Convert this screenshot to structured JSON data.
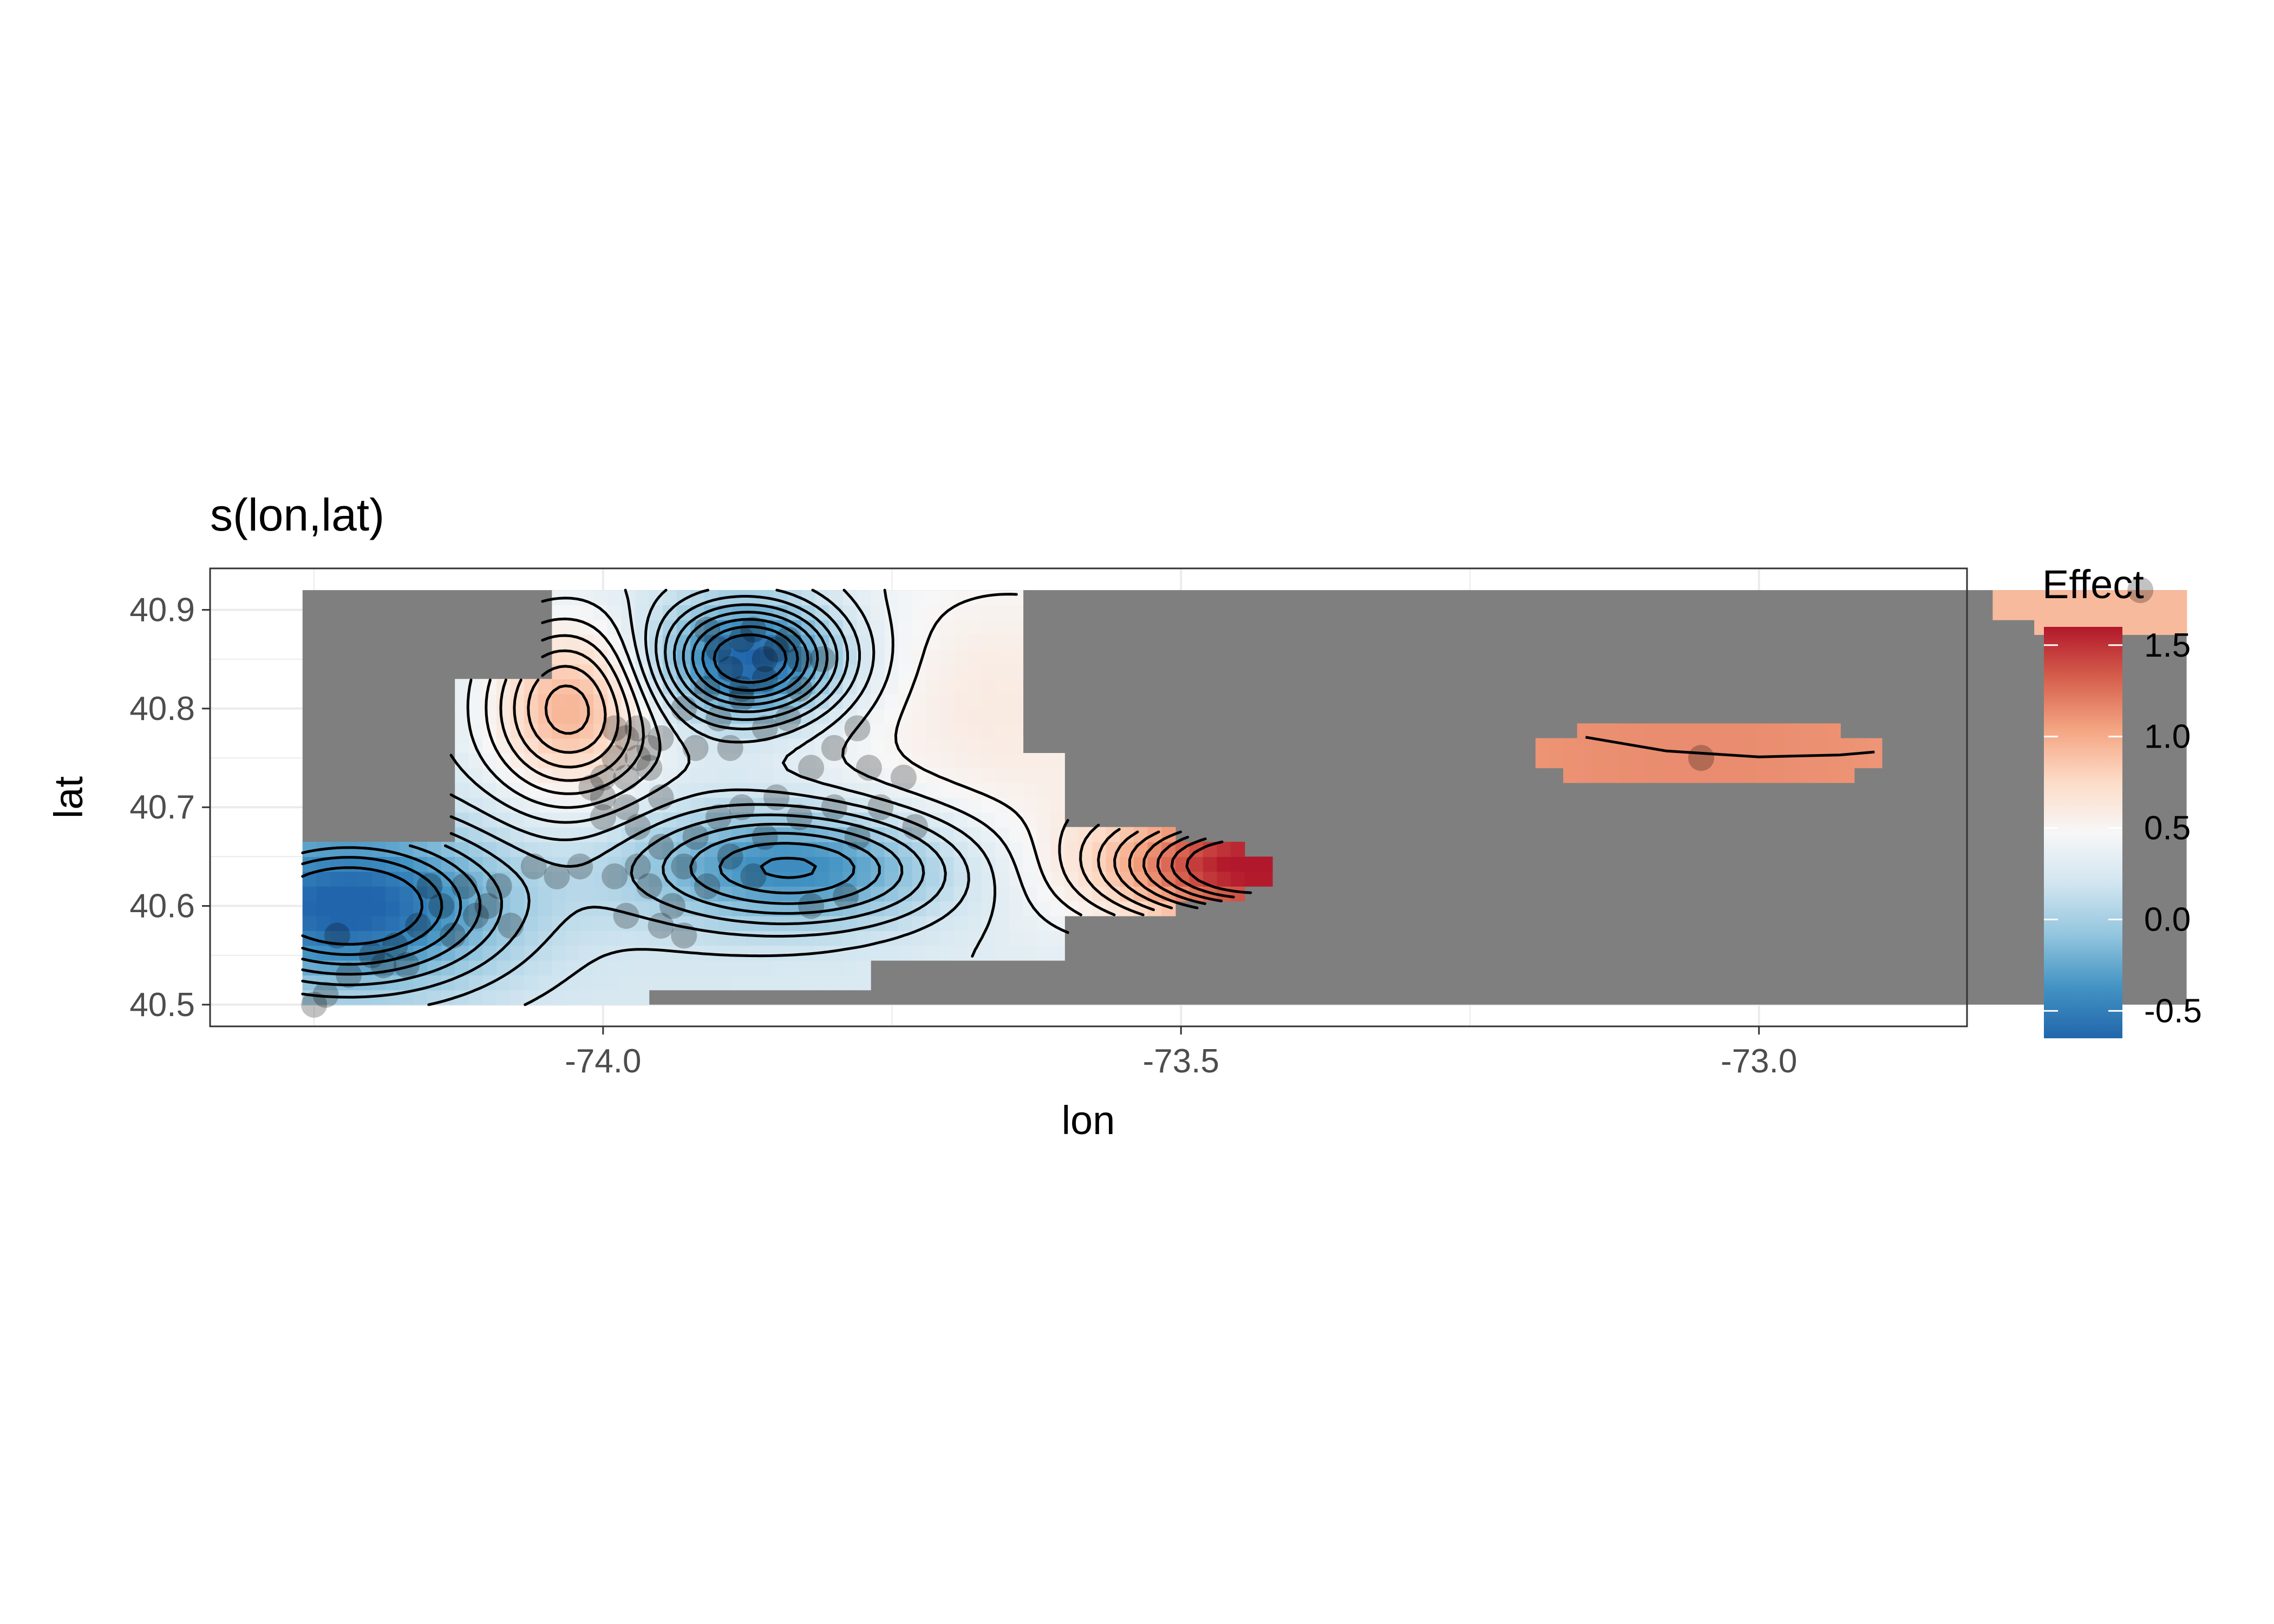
{
  "chart_data": {
    "type": "heatmap",
    "title": "s(lon,lat)",
    "xlabel": "lon",
    "ylabel": "lat",
    "xlim": [
      -74.34,
      -72.82
    ],
    "ylim": [
      40.478,
      40.942
    ],
    "x_ticks": [
      -74.0,
      -73.5,
      -73.0
    ],
    "x_tick_labels": [
      "-74.0",
      "-73.5",
      "-73.0"
    ],
    "y_ticks": [
      40.5,
      40.6,
      40.7,
      40.8,
      40.9
    ],
    "y_tick_labels": [
      "40.5",
      "40.6",
      "40.7",
      "40.8",
      "40.9"
    ],
    "grid": true,
    "legend": {
      "title": "Effect",
      "position": "right",
      "range": [
        -0.65,
        1.6
      ],
      "breaks": [
        1.5,
        1.0,
        0.5,
        0.0,
        -0.5
      ],
      "break_labels": [
        "1.5",
        "1.0",
        "0.5",
        "0.0",
        "-0.5"
      ],
      "colors": [
        "#2166ac",
        "#4393c3",
        "#92c5de",
        "#d1e5f0",
        "#f7f7f7",
        "#fddbc7",
        "#f4a582",
        "#d6604d",
        "#b2182b"
      ]
    },
    "na_fill": "#7f7f7f",
    "domain_extent": {
      "lon": [
        -74.26,
        -72.63
      ],
      "lat": [
        40.5,
        40.92
      ]
    },
    "surface_regions": [
      {
        "name": "main-west",
        "lon": [
          -74.26,
          -73.42
        ],
        "lat": [
          40.5,
          40.92
        ],
        "effect_range": [
          -0.6,
          1.6
        ]
      },
      {
        "name": "east-blob",
        "lon": [
          -73.2,
          -72.89
        ],
        "lat": [
          40.72,
          40.79
        ],
        "effect_range": [
          1.05,
          1.2
        ]
      },
      {
        "name": "northeast-corner",
        "lon": [
          -72.8,
          -72.63
        ],
        "lat": [
          40.88,
          40.92
        ],
        "effect_range": [
          0.9,
          1.0
        ]
      }
    ],
    "effect_field_centers": [
      {
        "lon": -73.87,
        "lat": 40.85,
        "effect": -0.65
      },
      {
        "lon": -74.23,
        "lat": 40.6,
        "effect": -0.6
      },
      {
        "lon": -73.84,
        "lat": 40.64,
        "effect": -0.45
      },
      {
        "lon": -74.02,
        "lat": 40.79,
        "effect": 0.9
      },
      {
        "lon": -73.45,
        "lat": 40.64,
        "effect": 1.5
      },
      {
        "lon": -73.05,
        "lat": 40.75,
        "effect": 1.1
      },
      {
        "lon": -72.72,
        "lat": 40.91,
        "effect": 0.9
      }
    ],
    "contour_lines": "black, smooth curves at regular effect intervals",
    "observations": {
      "marker": "semi-transparent black circle",
      "points": [
        [
          -73.86,
          40.85
        ],
        [
          -73.88,
          40.87
        ],
        [
          -73.85,
          40.86
        ],
        [
          -73.89,
          40.84
        ],
        [
          -73.87,
          40.88
        ],
        [
          -73.84,
          40.87
        ],
        [
          -73.86,
          40.83
        ],
        [
          -73.9,
          40.86
        ],
        [
          -73.83,
          40.85
        ],
        [
          -73.88,
          40.82
        ],
        [
          -73.81,
          40.85
        ],
        [
          -73.91,
          40.88
        ],
        [
          -73.98,
          40.77
        ],
        [
          -73.97,
          40.75
        ],
        [
          -73.99,
          40.78
        ],
        [
          -73.96,
          40.76
        ],
        [
          -74.0,
          40.73
        ],
        [
          -73.98,
          40.73
        ],
        [
          -74.0,
          40.71
        ],
        [
          -73.97,
          40.78
        ],
        [
          -73.95,
          40.77
        ],
        [
          -73.99,
          40.75
        ],
        [
          -74.01,
          40.72
        ],
        [
          -73.96,
          40.74
        ],
        [
          -73.98,
          40.7
        ],
        [
          -74.0,
          40.69
        ],
        [
          -73.97,
          40.68
        ],
        [
          -73.95,
          40.71
        ],
        [
          -73.93,
          40.8
        ],
        [
          -73.91,
          40.82
        ],
        [
          -73.92,
          40.76
        ],
        [
          -73.9,
          40.79
        ],
        [
          -73.88,
          40.81
        ],
        [
          -73.89,
          40.76
        ],
        [
          -73.86,
          40.78
        ],
        [
          -73.84,
          40.79
        ],
        [
          -73.83,
          40.82
        ],
        [
          -73.8,
          40.76
        ],
        [
          -73.78,
          40.78
        ],
        [
          -73.82,
          40.74
        ],
        [
          -73.77,
          40.74
        ],
        [
          -73.95,
          40.66
        ],
        [
          -73.97,
          40.64
        ],
        [
          -73.93,
          40.64
        ],
        [
          -73.96,
          40.62
        ],
        [
          -73.99,
          40.63
        ],
        [
          -74.02,
          40.64
        ],
        [
          -74.04,
          40.63
        ],
        [
          -73.94,
          40.6
        ],
        [
          -73.91,
          40.62
        ],
        [
          -73.92,
          40.67
        ],
        [
          -73.9,
          40.69
        ],
        [
          -73.88,
          40.7
        ],
        [
          -73.86,
          40.67
        ],
        [
          -73.89,
          40.65
        ],
        [
          -73.87,
          40.63
        ],
        [
          -73.85,
          40.71
        ],
        [
          -73.83,
          40.69
        ],
        [
          -73.8,
          40.7
        ],
        [
          -73.78,
          40.67
        ],
        [
          -73.79,
          40.61
        ],
        [
          -73.76,
          40.7
        ],
        [
          -73.74,
          40.73
        ],
        [
          -73.73,
          40.68
        ],
        [
          -73.98,
          40.59
        ],
        [
          -73.95,
          40.58
        ],
        [
          -73.93,
          40.57
        ],
        [
          -73.82,
          40.6
        ],
        [
          -74.06,
          40.64
        ],
        [
          -74.09,
          40.62
        ],
        [
          -74.12,
          40.62
        ],
        [
          -74.14,
          40.6
        ],
        [
          -74.1,
          40.6
        ],
        [
          -74.16,
          40.58
        ],
        [
          -74.18,
          40.56
        ],
        [
          -74.2,
          40.55
        ],
        [
          -74.17,
          40.54
        ],
        [
          -74.22,
          40.53
        ],
        [
          -74.24,
          40.51
        ],
        [
          -74.25,
          40.5
        ],
        [
          -74.23,
          40.57
        ],
        [
          -74.13,
          40.57
        ],
        [
          -74.08,
          40.58
        ],
        [
          -74.15,
          40.62
        ],
        [
          -74.11,
          40.59
        ],
        [
          -74.19,
          40.54
        ],
        [
          -73.05,
          40.75
        ],
        [
          -72.67,
          40.92
        ]
      ]
    }
  }
}
